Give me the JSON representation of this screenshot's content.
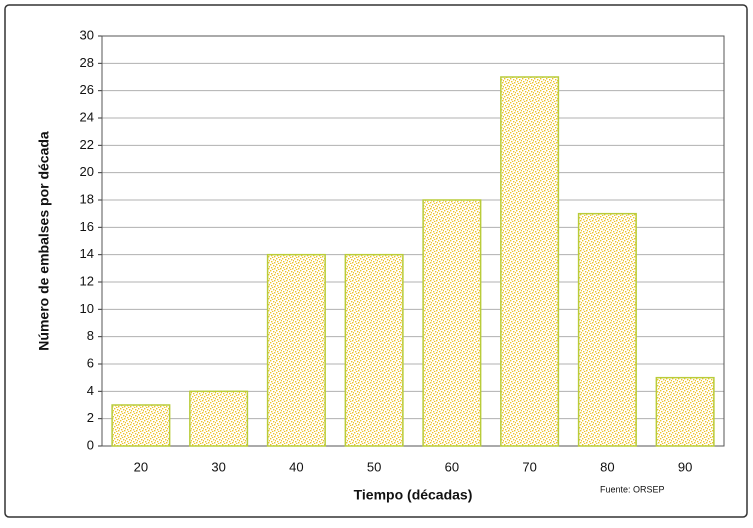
{
  "chart_data": {
    "type": "bar",
    "y_label": "Número de embalses por década",
    "x_label": "Tiempo (décadas)",
    "annotation": "Fuente: ORSEP",
    "categories": [
      "20",
      "30",
      "40",
      "50",
      "60",
      "70",
      "80",
      "90"
    ],
    "values": [
      3,
      4,
      14,
      14,
      18,
      27,
      17,
      5
    ],
    "color": "#eec22a",
    "edge_color": "#b9cc3a",
    "ylim": [
      0,
      30
    ],
    "yticks": [
      0,
      2,
      4,
      6,
      8,
      10,
      12,
      14,
      16,
      18,
      20,
      22,
      24,
      26,
      28,
      30
    ],
    "grid": true
  }
}
